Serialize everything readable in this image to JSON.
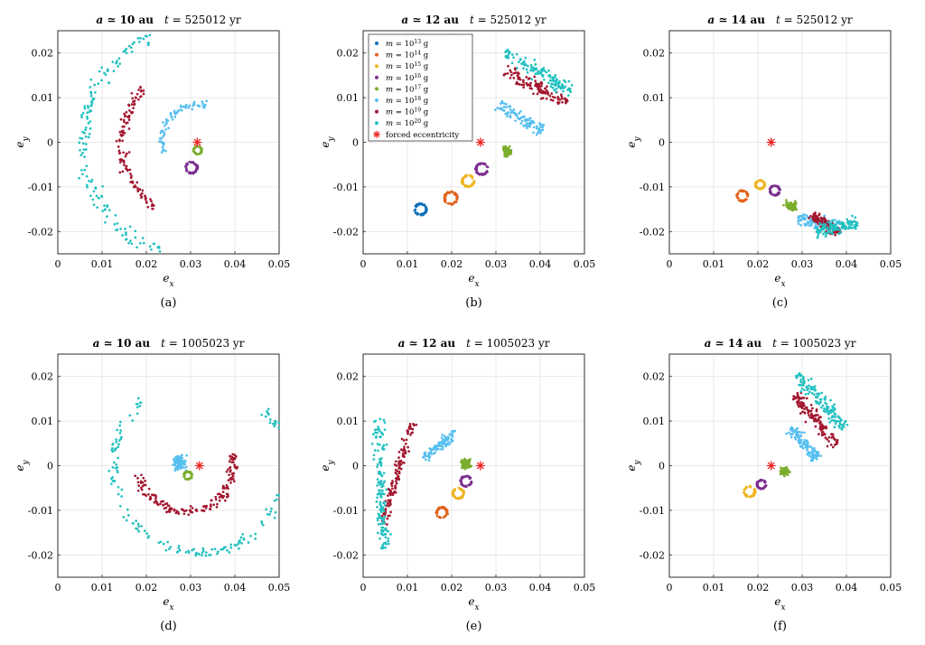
{
  "figure": {
    "colors": {
      "1e13": "#0c6fb8",
      "1e14": "#e0621c",
      "1e15": "#eeb521",
      "1e16": "#7b2e8f",
      "1e17": "#7cad2d",
      "1e18": "#56bfef",
      "1e19": "#a2162e",
      "1e20": "#23c0c0",
      "forced": "#ee2222"
    }
  },
  "chart_data": [
    {
      "type": "scatter",
      "title": "a ≃ 10 au   t = 525012 yr",
      "caption": "(a)",
      "xlabel": "e_x",
      "ylabel": "e_y",
      "xlim": [
        0,
        0.05
      ],
      "ylim": [
        -0.025,
        0.025
      ],
      "xticks": [
        "0",
        "0.01",
        "0.02",
        "0.03",
        "0.04",
        "0.05"
      ],
      "yticks": [
        "-0.02",
        "-0.01",
        "0",
        "0.01",
        "0.02"
      ],
      "grid": true,
      "forced_eccentricity": [
        0.0315,
        0.0
      ],
      "series": [
        {
          "key": "1e20",
          "shape": "arc",
          "center": [
            0.032,
            0.0
          ],
          "radius": 0.0262,
          "a0": 115,
          "a1": 250,
          "n": 150,
          "spread": 0.0017
        },
        {
          "key": "1e19",
          "shape": "arc",
          "center": [
            0.032,
            0.0
          ],
          "radius": 0.0175,
          "a0": 137,
          "a1": 235,
          "n": 120,
          "spread": 0.0012
        },
        {
          "key": "1e18",
          "shape": "arc",
          "center": [
            0.032,
            0.0
          ],
          "radius": 0.0085,
          "a0": 80,
          "a1": 195,
          "n": 70,
          "spread": 0.0007
        },
        {
          "key": "1e17",
          "shape": "ring",
          "center": [
            0.0316,
            -0.0018
          ],
          "radius": 0.0009,
          "n": 50
        },
        {
          "key": "1e16",
          "shape": "ring",
          "center": [
            0.0302,
            -0.0057
          ],
          "radius": 0.0013,
          "n": 50
        }
      ]
    },
    {
      "type": "scatter",
      "title": "a ≃ 12 au   t = 525012 yr",
      "caption": "(b)",
      "xlabel": "e_x",
      "ylabel": "e_y",
      "xlim": [
        0,
        0.05
      ],
      "ylim": [
        -0.025,
        0.025
      ],
      "xticks": [
        "0",
        "0.01",
        "0.02",
        "0.03",
        "0.04",
        "0.05"
      ],
      "yticks": [
        "-0.02",
        "-0.01",
        "0",
        "0.01",
        "0.02"
      ],
      "grid": true,
      "forced_eccentricity": [
        0.0265,
        0.0
      ],
      "legend": {
        "placement": "top-left",
        "entries": [
          {
            "key": "1e13",
            "label": "m = 10^13 g"
          },
          {
            "key": "1e14",
            "label": "m = 10^14 g"
          },
          {
            "key": "1e15",
            "label": "m = 10^15 g"
          },
          {
            "key": "1e16",
            "label": "m = 10^16 g"
          },
          {
            "key": "1e17",
            "label": "m = 10^17 g"
          },
          {
            "key": "1e18",
            "label": "m = 10^18 g"
          },
          {
            "key": "1e19",
            "label": "m = 10^19 g"
          },
          {
            "key": "1e20",
            "label": "m = 10^20 g"
          },
          {
            "key": "forced",
            "label": "forced eccentricity"
          }
        ]
      },
      "series": [
        {
          "key": "1e13",
          "shape": "ring",
          "center": [
            0.013,
            -0.015
          ],
          "radius": 0.0013,
          "n": 55
        },
        {
          "key": "1e14",
          "shape": "ring",
          "center": [
            0.0198,
            -0.0125
          ],
          "radius": 0.0014,
          "n": 55
        },
        {
          "key": "1e15",
          "shape": "ring",
          "center": [
            0.0237,
            -0.0087
          ],
          "radius": 0.0013,
          "n": 55
        },
        {
          "key": "1e16",
          "shape": "ring",
          "center": [
            0.0268,
            -0.006
          ],
          "radius": 0.0013,
          "n": 55
        },
        {
          "key": "1e17",
          "shape": "cluster",
          "center": [
            0.0325,
            -0.0022
          ],
          "rx": 0.0012,
          "ry": 0.0014,
          "n": 90
        },
        {
          "key": "1e18",
          "shape": "band",
          "from": [
            0.0305,
            0.0085
          ],
          "to": [
            0.0405,
            0.0025
          ],
          "width": 0.0022,
          "n": 90
        },
        {
          "key": "1e19",
          "shape": "band",
          "from": [
            0.032,
            0.016
          ],
          "to": [
            0.046,
            0.0085
          ],
          "width": 0.0023,
          "n": 110
        },
        {
          "key": "1e20",
          "shape": "band",
          "from": [
            0.032,
            0.02
          ],
          "to": [
            0.047,
            0.0115
          ],
          "width": 0.0025,
          "n": 130
        }
      ]
    },
    {
      "type": "scatter",
      "title": "a ≃ 14 au   t = 525012 yr",
      "caption": "(c)",
      "xlabel": "e_x",
      "ylabel": "e_y",
      "xlim": [
        0,
        0.05
      ],
      "ylim": [
        -0.025,
        0.025
      ],
      "xticks": [
        "0",
        "0.01",
        "0.02",
        "0.03",
        "0.04",
        "0.05"
      ],
      "yticks": [
        "-0.02",
        "-0.01",
        "0",
        "0.01",
        "0.02"
      ],
      "grid": true,
      "forced_eccentricity": [
        0.023,
        0.0
      ],
      "series": [
        {
          "key": "1e14",
          "shape": "ring",
          "center": [
            0.0165,
            -0.012
          ],
          "radius": 0.0012,
          "n": 50
        },
        {
          "key": "1e15",
          "shape": "ring",
          "center": [
            0.0205,
            -0.0095
          ],
          "radius": 0.001,
          "n": 50
        },
        {
          "key": "1e16",
          "shape": "ring",
          "center": [
            0.0238,
            -0.0108
          ],
          "radius": 0.0011,
          "n": 50
        },
        {
          "key": "1e17",
          "shape": "cluster",
          "center": [
            0.0275,
            -0.0142
          ],
          "rx": 0.0016,
          "ry": 0.0012,
          "n": 90
        },
        {
          "key": "1e18",
          "shape": "band",
          "from": [
            0.029,
            -0.0175
          ],
          "to": [
            0.039,
            -0.0185
          ],
          "width": 0.0022,
          "n": 110
        },
        {
          "key": "1e19",
          "shape": "band",
          "from": [
            0.032,
            -0.016
          ],
          "to": [
            0.0385,
            -0.0205
          ],
          "width": 0.0018,
          "n": 100
        },
        {
          "key": "1e20",
          "shape": "band",
          "from": [
            0.033,
            -0.02
          ],
          "to": [
            0.0425,
            -0.018
          ],
          "width": 0.0022,
          "n": 120
        }
      ]
    },
    {
      "type": "scatter",
      "title": "a ≃ 10 au   t = 1005023 yr",
      "caption": "(d)",
      "xlabel": "e_x",
      "ylabel": "e_y",
      "xlim": [
        0,
        0.05
      ],
      "ylim": [
        -0.025,
        0.025
      ],
      "xticks": [
        "0",
        "0.01",
        "0.02",
        "0.03",
        "0.04",
        "0.05"
      ],
      "yticks": [
        "-0.02",
        "-0.01",
        "0",
        "0.01",
        "0.02"
      ],
      "grid": true,
      "forced_eccentricity": [
        0.032,
        0.0
      ],
      "series": [
        {
          "key": "1e20",
          "shape": "arc",
          "center": [
            0.032,
            0.0
          ],
          "radius": 0.0195,
          "a0": 132,
          "a1": 400,
          "n": 190,
          "spread": 0.0012
        },
        {
          "key": "1e19",
          "shape": "arc",
          "center": [
            0.029,
            0.0
          ],
          "radius": 0.0105,
          "a0": 190,
          "a1": 375,
          "n": 160,
          "spread": 0.0012
        },
        {
          "key": "1e18",
          "shape": "cluster",
          "center": [
            0.0275,
            0.0005
          ],
          "rx": 0.0018,
          "ry": 0.0022,
          "n": 90
        },
        {
          "key": "1e17",
          "shape": "ring",
          "center": [
            0.0294,
            -0.0022
          ],
          "radius": 0.0009,
          "n": 45
        }
      ]
    },
    {
      "type": "scatter",
      "title": "a ≃ 12 au   t = 1005023 yr",
      "caption": "(e)",
      "xlabel": "e_x",
      "ylabel": "e_y",
      "xlim": [
        0,
        0.05
      ],
      "ylim": [
        -0.025,
        0.025
      ],
      "xticks": [
        "0",
        "0.01",
        "0.02",
        "0.03",
        "0.04",
        "0.05"
      ],
      "yticks": [
        "-0.02",
        "-0.01",
        "0",
        "0.01",
        "0.02"
      ],
      "grid": true,
      "forced_eccentricity": [
        0.0265,
        0.0
      ],
      "series": [
        {
          "key": "1e14",
          "shape": "ring",
          "center": [
            0.0178,
            -0.0105
          ],
          "radius": 0.0012,
          "n": 50
        },
        {
          "key": "1e15",
          "shape": "ring",
          "center": [
            0.0215,
            -0.0062
          ],
          "radius": 0.0012,
          "n": 50
        },
        {
          "key": "1e16",
          "shape": "ring",
          "center": [
            0.0232,
            -0.0035
          ],
          "radius": 0.0012,
          "n": 50
        },
        {
          "key": "1e17",
          "shape": "cluster",
          "center": [
            0.0232,
            0.0005
          ],
          "rx": 0.0014,
          "ry": 0.0014,
          "n": 80
        },
        {
          "key": "1e18",
          "shape": "band",
          "from": [
            0.0135,
            0.0015
          ],
          "to": [
            0.021,
            0.0075
          ],
          "width": 0.0018,
          "n": 90
        },
        {
          "key": "1e19",
          "shape": "band",
          "from": [
            0.0045,
            -0.013
          ],
          "to": [
            0.011,
            0.0095
          ],
          "width": 0.0017,
          "n": 130
        },
        {
          "key": "1e20",
          "shape": "band",
          "from": [
            0.0035,
            0.0105
          ],
          "to": [
            0.0045,
            -0.0185
          ],
          "width": 0.0023,
          "n": 150
        }
      ]
    },
    {
      "type": "scatter",
      "title": "a ≃ 14 au   t = 1005023 yr",
      "caption": "(f)",
      "xlabel": "e_x",
      "ylabel": "e_y",
      "xlim": [
        0,
        0.05
      ],
      "ylim": [
        -0.025,
        0.025
      ],
      "xticks": [
        "0",
        "0.01",
        "0.02",
        "0.03",
        "0.04",
        "0.05"
      ],
      "yticks": [
        "-0.02",
        "-0.01",
        "0",
        "0.01",
        "0.02"
      ],
      "grid": true,
      "forced_eccentricity": [
        0.023,
        0.0
      ],
      "series": [
        {
          "key": "1e15",
          "shape": "ring",
          "center": [
            0.0181,
            -0.0058
          ],
          "radius": 0.0012,
          "n": 50
        },
        {
          "key": "1e16",
          "shape": "ring",
          "center": [
            0.0208,
            -0.0042
          ],
          "radius": 0.001,
          "n": 50
        },
        {
          "key": "1e17",
          "shape": "cluster",
          "center": [
            0.026,
            -0.0012
          ],
          "rx": 0.0012,
          "ry": 0.0013,
          "n": 80
        },
        {
          "key": "1e18",
          "shape": "band",
          "from": [
            0.0275,
            0.0085
          ],
          "to": [
            0.0335,
            0.0015
          ],
          "width": 0.002,
          "n": 110
        },
        {
          "key": "1e19",
          "shape": "band",
          "from": [
            0.0285,
            0.016
          ],
          "to": [
            0.0375,
            0.0045
          ],
          "width": 0.0023,
          "n": 130
        },
        {
          "key": "1e20",
          "shape": "band",
          "from": [
            0.029,
            0.0205
          ],
          "to": [
            0.0395,
            0.0085
          ],
          "width": 0.0025,
          "n": 140
        }
      ]
    }
  ]
}
